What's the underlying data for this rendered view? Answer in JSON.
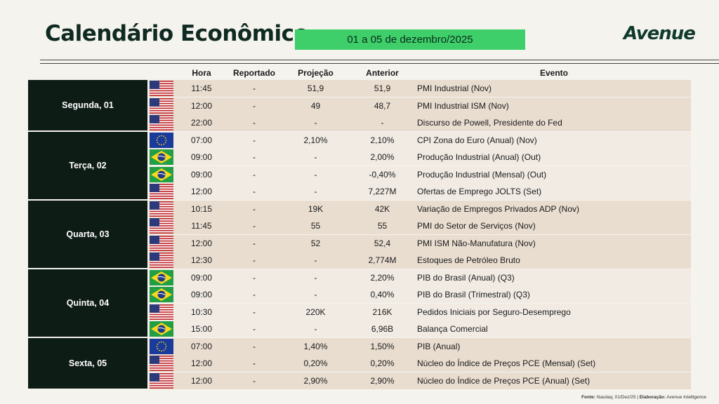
{
  "title": "Calendário Econômico",
  "date_range": "01 a 05 de dezembro/2025",
  "logo": "Avenue",
  "headers": {
    "time": "Hora",
    "reported": "Reportado",
    "projection": "Projeção",
    "previous": "Anterior",
    "event": "Evento"
  },
  "groups": [
    {
      "label": "Segunda, 01",
      "rows": 3
    },
    {
      "label": "Terça, 02",
      "rows": 4
    },
    {
      "label": "Quarta, 03",
      "rows": 4
    },
    {
      "label": "Quinta, 04",
      "rows": 4
    },
    {
      "label": "Sexta, 05",
      "rows": 3
    }
  ],
  "rows": [
    {
      "flag": "us-flag",
      "time": "11:45",
      "reported": "-",
      "projection": "51,9",
      "previous": "51,9",
      "event": "PMI Industrial (Nov)"
    },
    {
      "flag": "us-flag",
      "time": "12:00",
      "reported": "-",
      "projection": "49",
      "previous": "48,7",
      "event": "PMI Industrial ISM (Nov)"
    },
    {
      "flag": "us-flag",
      "time": "22:00",
      "reported": "-",
      "projection": "-",
      "previous": "-",
      "event": "Discurso de Powell, Presidente do Fed"
    },
    {
      "flag": "eu-flag",
      "time": "07:00",
      "reported": "-",
      "projection": "2,10%",
      "previous": "2,10%",
      "event": "CPI Zona do Euro (Anual) (Nov)"
    },
    {
      "flag": "br-flag",
      "time": "09:00",
      "reported": "-",
      "projection": "-",
      "previous": "2,00%",
      "event": "Produção Industrial (Anual) (Out)"
    },
    {
      "flag": "br-flag",
      "time": "09:00",
      "reported": "-",
      "projection": "-",
      "previous": "-0,40%",
      "event": "Produção Industrial (Mensal) (Out)"
    },
    {
      "flag": "us-flag",
      "time": "12:00",
      "reported": "-",
      "projection": "-",
      "previous": "7,227M",
      "event": "Ofertas de Emprego JOLTS (Set)"
    },
    {
      "flag": "us-flag",
      "time": "10:15",
      "reported": "-",
      "projection": "19K",
      "previous": "42K",
      "event": "Variação de Empregos Privados ADP (Nov)"
    },
    {
      "flag": "us-flag",
      "time": "11:45",
      "reported": "-",
      "projection": "55",
      "previous": "55",
      "event": "PMI do Setor de Serviços (Nov)"
    },
    {
      "flag": "us-flag",
      "time": "12:00",
      "reported": "-",
      "projection": "52",
      "previous": "52,4",
      "event": "PMI ISM Não-Manufatura (Nov)"
    },
    {
      "flag": "us-flag",
      "time": "12:30",
      "reported": "-",
      "projection": "-",
      "previous": "2,774M",
      "event": "Estoques de Petróleo Bruto"
    },
    {
      "flag": "br-flag",
      "time": "09:00",
      "reported": "-",
      "projection": "-",
      "previous": "2,20%",
      "event": "PIB do Brasil (Anual) (Q3)"
    },
    {
      "flag": "br-flag",
      "time": "09:00",
      "reported": "-",
      "projection": "-",
      "previous": "0,40%",
      "event": "PIB do Brasil (Trimestral) (Q3)"
    },
    {
      "flag": "us-flag",
      "time": "10:30",
      "reported": "-",
      "projection": "220K",
      "previous": "216K",
      "event": "Pedidos Iniciais por Seguro-Desemprego"
    },
    {
      "flag": "br-flag",
      "time": "15:00",
      "reported": "-",
      "projection": "-",
      "previous": "6,96B",
      "event": "Balança Comercial"
    },
    {
      "flag": "eu-flag",
      "time": "07:00",
      "reported": "-",
      "projection": "1,40%",
      "previous": "1,50%",
      "event": "PIB (Anual)"
    },
    {
      "flag": "us-flag",
      "time": "12:00",
      "reported": "-",
      "projection": "0,20%",
      "previous": "0,20%",
      "event": "Núcleo do Índice de Preços PCE (Mensal) (Set)"
    },
    {
      "flag": "us-flag",
      "time": "12:00",
      "reported": "-",
      "projection": "2,90%",
      "previous": "2,90%",
      "event": "Núcleo do Índice de Preços PCE (Anual) (Set)"
    }
  ],
  "footer": {
    "source_label": "Fonte:",
    "source_text": "Nasdaq, 01/Dez/25 | ",
    "author_label": "Elaboração:",
    "author_text": "Avenue Intelligence"
  },
  "colors": {
    "date_box": "#3ecf6a",
    "group_bg": "#0e1c16",
    "band_a": "#e9ddd0",
    "band_b": "#f1ebe4"
  }
}
